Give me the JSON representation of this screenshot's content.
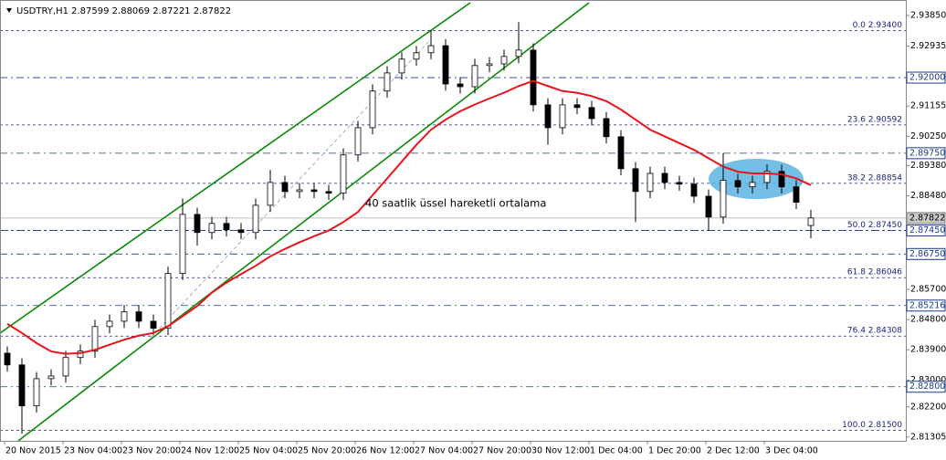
{
  "chart_data": {
    "type": "candlestick",
    "title": "USDTRY,H1  2.87599 2.88069 2.87221 2.87822",
    "annotation": "40 saatlik üssel hareketli ortalama",
    "x_labels": [
      "20 Nov 2015",
      "23 Nov 04:00",
      "23 Nov 20:00",
      "24 Nov 12:00",
      "25 Nov 04:00",
      "25 Nov 20:00",
      "26 Nov 12:00",
      "27 Nov 04:00",
      "27 Nov 20:00",
      "30 Nov 12:00",
      "1 Dec 04:00",
      "1 Dec 20:00",
      "2 Dec 12:00",
      "3 Dec 04:00"
    ],
    "open": [
      2.838,
      2.8345,
      2.8223,
      2.8304,
      2.8312,
      2.8367,
      2.8386,
      2.8459,
      2.8475,
      2.8503,
      2.8475,
      2.8454,
      2.8617,
      2.8793,
      2.8739,
      2.8766,
      2.8747,
      2.8739,
      2.882,
      2.8888,
      2.8861,
      2.8866,
      2.8861,
      2.8856,
      2.897,
      2.9051,
      2.916,
      2.9214,
      2.9255,
      2.9274,
      2.9295,
      2.9181,
      2.9173,
      2.9236,
      2.9241,
      2.9263,
      2.9282,
      2.9119,
      2.9051,
      2.9119,
      2.9111,
      2.9078,
      2.9024,
      2.8929,
      2.8861,
      2.8915,
      2.8888,
      2.8883,
      2.8847,
      2.8785,
      2.8894,
      2.8875,
      2.8888,
      2.8921,
      2.8875,
      2.87599
    ],
    "high": [
      2.84,
      2.8365,
      2.8324,
      2.8332,
      2.8387,
      2.8406,
      2.8479,
      2.8495,
      2.8523,
      2.8523,
      2.8495,
      2.8637,
      2.884,
      2.8813,
      2.8786,
      2.8786,
      2.8767,
      2.884,
      2.8925,
      2.8908,
      2.8886,
      2.8886,
      2.8881,
      2.899,
      2.9071,
      2.918,
      2.9234,
      2.9275,
      2.9294,
      2.934,
      2.9315,
      2.9201,
      2.9256,
      2.9261,
      2.9283,
      2.9365,
      2.9302,
      2.9139,
      2.9139,
      2.9139,
      2.9131,
      2.9098,
      2.9044,
      2.8949,
      2.8935,
      2.8935,
      2.8908,
      2.8903,
      2.8867,
      2.8975,
      2.8914,
      2.8908,
      2.8941,
      2.8941,
      2.8895,
      2.88069
    ],
    "low": [
      2.8325,
      2.814,
      2.8203,
      2.8284,
      2.8292,
      2.8347,
      2.8366,
      2.8439,
      2.8455,
      2.8455,
      2.8434,
      2.8434,
      2.8597,
      2.87,
      2.8719,
      2.8727,
      2.8719,
      2.8719,
      2.88,
      2.8841,
      2.8841,
      2.8841,
      2.8836,
      2.8836,
      2.895,
      2.9031,
      2.914,
      2.9194,
      2.9235,
      2.9254,
      2.9161,
      2.9153,
      2.9153,
      2.9216,
      2.9221,
      2.9243,
      2.9099,
      2.9,
      2.9031,
      2.9091,
      2.9058,
      2.9004,
      2.8909,
      2.877,
      2.8841,
      2.8868,
      2.8863,
      2.8827,
      2.8745,
      2.8765,
      2.8855,
      2.8855,
      2.8868,
      2.8855,
      2.8809,
      2.87221
    ],
    "close": [
      2.8345,
      2.8223,
      2.8304,
      2.8312,
      2.8367,
      2.8386,
      2.8459,
      2.8475,
      2.8503,
      2.8475,
      2.8454,
      2.8617,
      2.8793,
      2.8739,
      2.8766,
      2.8747,
      2.8739,
      2.882,
      2.8888,
      2.8861,
      2.8866,
      2.8861,
      2.8856,
      2.897,
      2.9051,
      2.916,
      2.9214,
      2.9255,
      2.9274,
      2.9295,
      2.9181,
      2.9173,
      2.9236,
      2.9241,
      2.9263,
      2.9282,
      2.9119,
      2.9051,
      2.9119,
      2.9111,
      2.9078,
      2.9024,
      2.8929,
      2.8861,
      2.8915,
      2.8888,
      2.8883,
      2.8847,
      2.8785,
      2.8894,
      2.8875,
      2.8888,
      2.8921,
      2.8875,
      2.8829,
      2.87822
    ],
    "ema": [
      2.8467,
      2.844,
      2.841,
      2.8385,
      2.8378,
      2.838,
      2.839,
      2.8405,
      2.842,
      2.8432,
      2.844,
      2.846,
      2.849,
      2.852,
      2.856,
      2.859,
      2.8615,
      2.864,
      2.8668,
      2.869,
      2.871,
      2.8728,
      2.8745,
      2.877,
      2.88,
      2.885,
      2.89,
      2.895,
      2.9,
      2.9045,
      2.9075,
      2.91,
      2.912,
      2.9138,
      2.9155,
      2.9175,
      2.919,
      2.9175,
      2.916,
      2.9155,
      2.9145,
      2.913,
      2.9105,
      2.9075,
      2.9045,
      2.9025,
      2.9005,
      2.8985,
      2.896,
      2.8935,
      2.892,
      2.8915,
      2.8915,
      2.8912,
      2.89,
      2.888
    ],
    "ema_color": "#e8141c",
    "candle_color": "#000000",
    "ylim": [
      2.8119,
      2.9431
    ],
    "yticks": [
      {
        "value": 2.9385,
        "label": "2.93850"
      },
      {
        "value": 2.92935,
        "label": "2.92935"
      },
      {
        "value": 2.91155,
        "label": "2.91155"
      },
      {
        "value": 2.9025,
        "label": "2.90250"
      },
      {
        "value": 2.8938,
        "label": "2.89380"
      },
      {
        "value": 2.8848,
        "label": "2.88480"
      },
      {
        "value": 2.857,
        "label": "2.85700"
      },
      {
        "value": 2.848,
        "label": "2.84800"
      },
      {
        "value": 2.839,
        "label": "2.83900"
      },
      {
        "value": 2.83,
        "label": "2.83000"
      },
      {
        "value": 2.822,
        "label": "2.82200"
      },
      {
        "value": 2.81305,
        "label": "2.81305"
      }
    ],
    "fib_levels": [
      {
        "value": 2.934,
        "label": "0.0 2.93400"
      },
      {
        "value": 2.90592,
        "label": "23.6 2.90592"
      },
      {
        "value": 2.88854,
        "label": "38.2 2.88854"
      },
      {
        "value": 2.8745,
        "label": "50.0 2.87450"
      },
      {
        "value": 2.86046,
        "label": "61.8 2.86046"
      },
      {
        "value": 2.84308,
        "label": "76.4 2.84308"
      },
      {
        "value": 2.815,
        "label": "100.0 2.81500"
      }
    ],
    "price_levels": [
      {
        "value": 2.92,
        "label": "2.92000"
      },
      {
        "value": 2.8975,
        "label": "2.89750"
      },
      {
        "value": 2.8745,
        "label": "2.87450"
      },
      {
        "value": 2.8675,
        "label": "2.86750"
      },
      {
        "value": 2.85216,
        "label": "2.85216"
      },
      {
        "value": 2.828,
        "label": "2.82800"
      }
    ],
    "current_price": {
      "value": 2.87822,
      "label": "2.87822"
    }
  }
}
